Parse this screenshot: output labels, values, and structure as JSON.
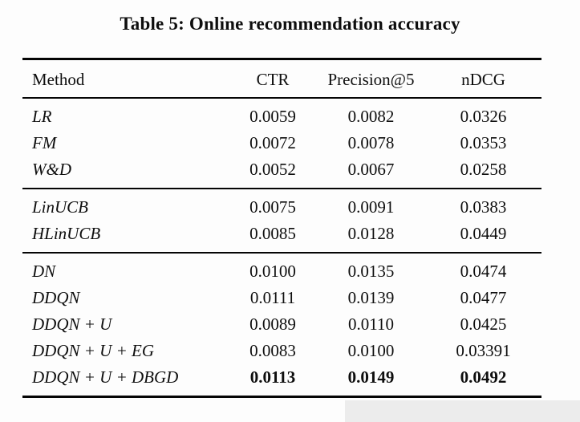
{
  "caption": {
    "text": "Table 5: Online recommendation accuracy"
  },
  "table": {
    "columns": [
      "Method",
      "CTR",
      "Precision@5",
      "nDCG"
    ],
    "groups": [
      {
        "name": "supervised-baselines",
        "rows": [
          {
            "method": "LR",
            "values": [
              "0.0059",
              "0.0082",
              "0.0326"
            ]
          },
          {
            "method": "FM",
            "values": [
              "0.0072",
              "0.0078",
              "0.0353"
            ]
          },
          {
            "method": "W&D",
            "values": [
              "0.0052",
              "0.0067",
              "0.0258"
            ]
          }
        ]
      },
      {
        "name": "bandit-baselines",
        "rows": [
          {
            "method": "LinUCB",
            "values": [
              "0.0075",
              "0.0091",
              "0.0383"
            ]
          },
          {
            "method": "HLinUCB",
            "values": [
              "0.0085",
              "0.0128",
              "0.0449"
            ]
          }
        ]
      },
      {
        "name": "rl-variants",
        "rows": [
          {
            "method": "DN",
            "values": [
              "0.0100",
              "0.0135",
              "0.0474"
            ]
          },
          {
            "method": "DDQN",
            "values": [
              "0.0111",
              "0.0139",
              "0.0477"
            ]
          },
          {
            "method": "DDQN + U",
            "values": [
              "0.0089",
              "0.0110",
              "0.0425"
            ]
          },
          {
            "method": "DDQN + U + EG",
            "values": [
              "0.0083",
              "0.0100",
              "0.03391"
            ]
          },
          {
            "method": "DDQN + U + DBGD",
            "values": [
              "0.0113",
              "0.0149",
              "0.0492"
            ],
            "bold": true
          }
        ]
      }
    ]
  },
  "colors": {
    "background": "#fdfdfd",
    "text": "#0e0e0e",
    "rule": "#050505",
    "artifact_band": "#ececec"
  }
}
